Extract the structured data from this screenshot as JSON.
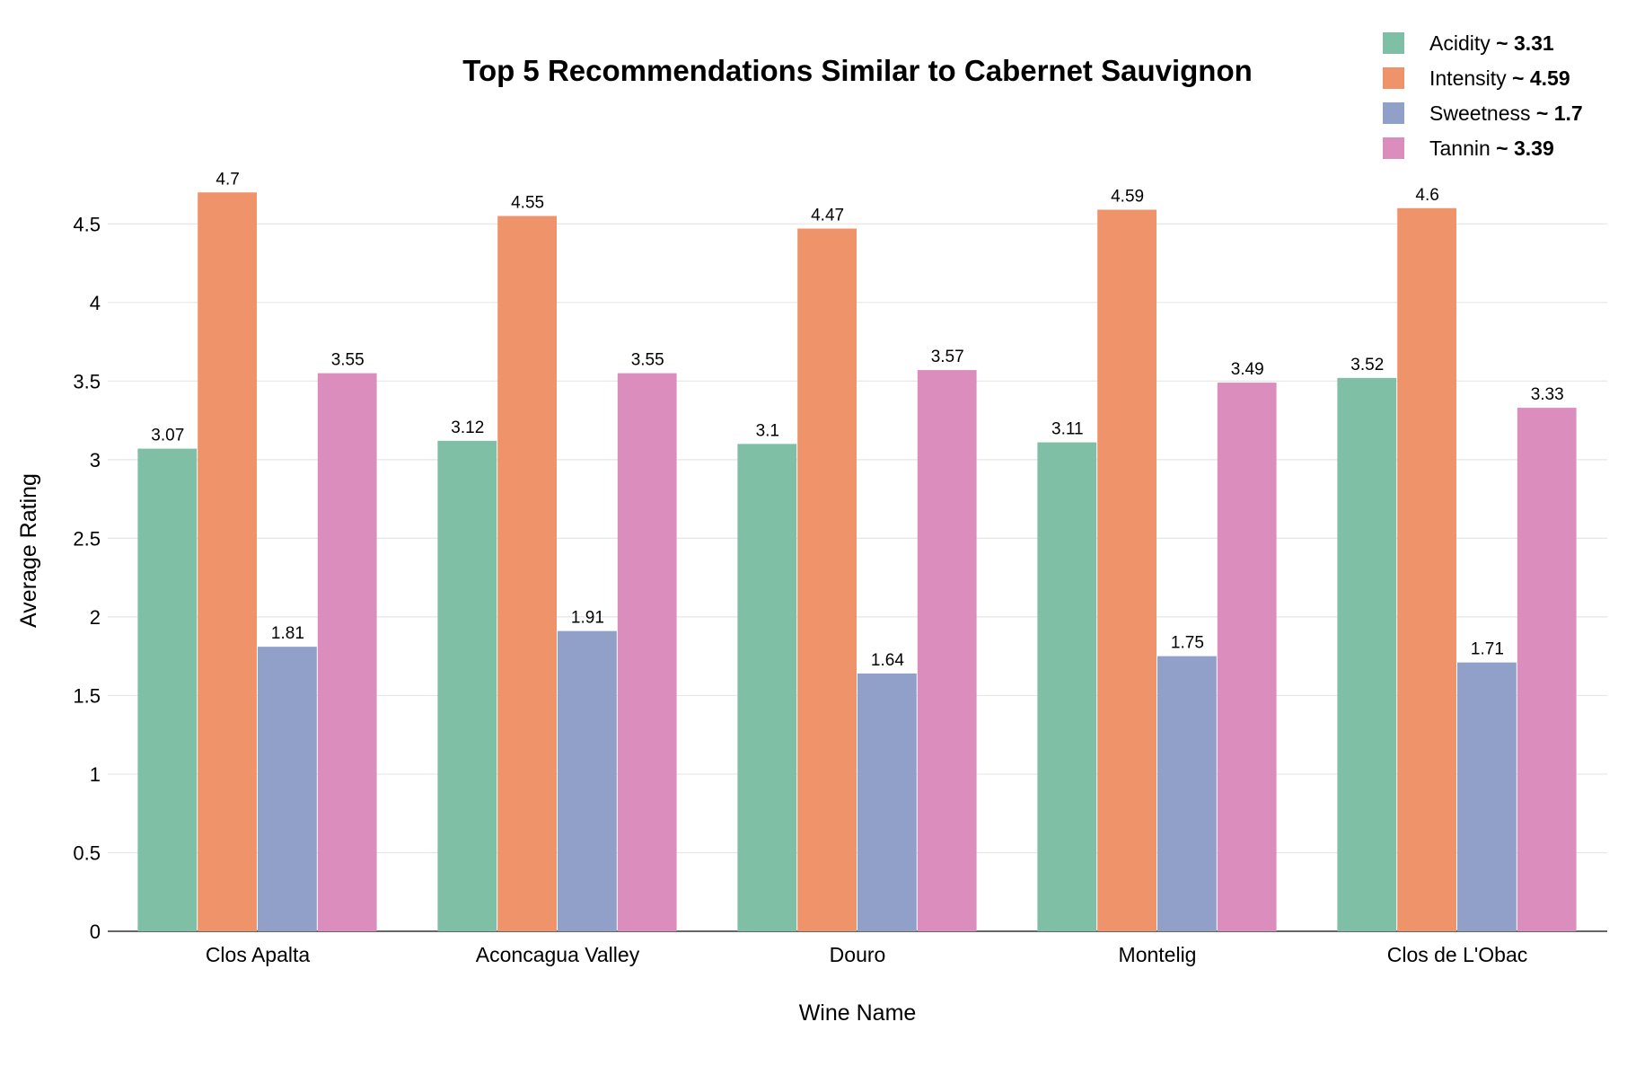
{
  "chart_data": {
    "type": "bar",
    "title": "Top 5 Recommendations Similar to Cabernet Sauvignon",
    "xlabel": "Wine Name",
    "ylabel": "Average Rating",
    "categories": [
      "Clos Apalta",
      "Aconcagua Valley",
      "Douro",
      "Montelig",
      "Clos de L'Obac"
    ],
    "ylim": [
      0,
      4.85
    ],
    "yticks": [
      {
        "value": 0,
        "label": "0"
      },
      {
        "value": 0.5,
        "label": "0.5"
      },
      {
        "value": 1,
        "label": "1"
      },
      {
        "value": 1.5,
        "label": "1.5"
      },
      {
        "value": 2,
        "label": "2"
      },
      {
        "value": 2.5,
        "label": "2.5"
      },
      {
        "value": 3,
        "label": "3"
      },
      {
        "value": 3.5,
        "label": "3.5"
      },
      {
        "value": 4,
        "label": "4"
      },
      {
        "value": 4.5,
        "label": "4.5"
      }
    ],
    "grid": true,
    "legend_position": "top-right",
    "series": [
      {
        "name": "Acidity",
        "legend_value": "~ 3.31",
        "color": "#7fbfa5",
        "values": [
          3.07,
          3.12,
          3.1,
          3.11,
          3.52
        ],
        "labels": [
          "3.07",
          "3.12",
          "3.1",
          "3.11",
          "3.52"
        ]
      },
      {
        "name": "Intensity",
        "legend_value": "~ 4.59",
        "color": "#ef936b",
        "values": [
          4.7,
          4.55,
          4.47,
          4.59,
          4.6
        ],
        "labels": [
          "4.7",
          "4.55",
          "4.47",
          "4.59",
          "4.6"
        ]
      },
      {
        "name": "Sweetness",
        "legend_value": "~ 1.7",
        "color": "#91a0c9",
        "values": [
          1.81,
          1.91,
          1.64,
          1.75,
          1.71
        ],
        "labels": [
          "1.81",
          "1.91",
          "1.64",
          "1.75",
          "1.71"
        ]
      },
      {
        "name": "Tannin",
        "legend_value": "~ 3.39",
        "color": "#db8ebe",
        "values": [
          3.55,
          3.55,
          3.57,
          3.49,
          3.33
        ],
        "labels": [
          "3.55",
          "3.55",
          "3.57",
          "3.49",
          "3.33"
        ]
      }
    ]
  }
}
